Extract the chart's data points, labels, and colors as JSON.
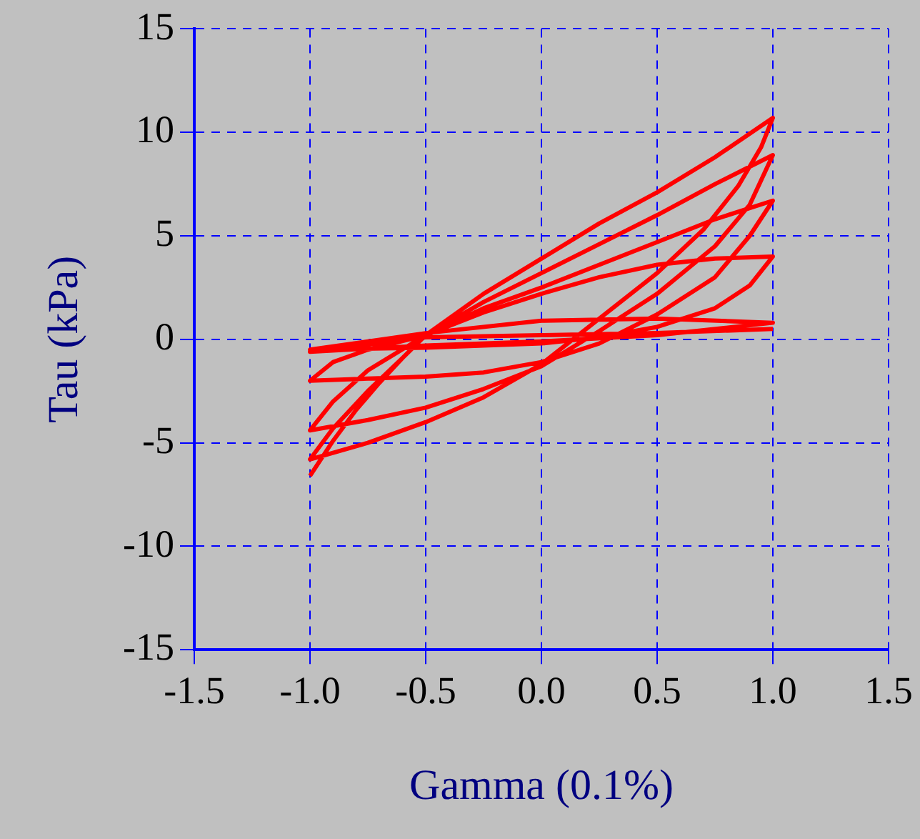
{
  "chart_data": {
    "type": "line",
    "xlabel": "Gamma (0.1%)",
    "ylabel": "Tau (kPa)",
    "xlim": [
      -1.5,
      1.5
    ],
    "ylim": [
      -15,
      15
    ],
    "xticks": [
      {
        "value": -1.5,
        "label": "-1.5"
      },
      {
        "value": -1,
        "label": "-1.0"
      },
      {
        "value": -0.5,
        "label": "-0.5"
      },
      {
        "value": 0,
        "label": "0.0"
      },
      {
        "value": 0.5,
        "label": "0.5"
      },
      {
        "value": 1,
        "label": "1.0"
      },
      {
        "value": 1.5,
        "label": "1.5"
      }
    ],
    "yticks": [
      -15,
      -10,
      -5,
      0,
      5,
      10,
      15
    ],
    "grid": true,
    "legend": false,
    "marker": "none",
    "line_style": "solid",
    "series": [
      {
        "color": "#ff0000",
        "x": [
          -1,
          -0.9,
          -0.8,
          -0.7,
          -0.6,
          -0.5,
          -0.25,
          0,
          0.25,
          0.5,
          0.75,
          1,
          0.95,
          0.85,
          0.7,
          0.5,
          0.25,
          0,
          -0.25,
          -0.5,
          -0.75,
          -1,
          -0.9,
          -0.75,
          -0.6,
          -0.5,
          -0.25,
          0,
          0.25,
          0.5,
          0.75,
          1,
          0.9,
          0.75,
          0.5,
          0.25,
          0,
          -0.25,
          -0.5,
          -0.75,
          -1,
          -0.9,
          -0.75,
          -0.5,
          -0.25,
          0,
          0.25,
          0.5,
          0.75,
          1,
          0.9,
          0.75,
          0.5,
          0.25,
          0,
          -0.25,
          -0.5,
          -0.75,
          -1,
          -0.9,
          -0.75,
          -0.5,
          -0.25,
          0,
          0.25,
          0.5,
          0.75,
          1,
          0.9,
          0.75,
          0.5,
          0.25,
          0,
          -0.5,
          -1,
          -0.5,
          0,
          0.5,
          1,
          0.5,
          0,
          -0.5,
          -1,
          -0.5,
          0,
          0.5,
          1
        ],
        "values": [
          -6.6,
          -4.9,
          -3.4,
          -2.1,
          -0.9,
          0.2,
          2.2,
          3.9,
          5.6,
          7.1,
          8.8,
          10.7,
          9.3,
          7.4,
          5.3,
          3.2,
          1.0,
          -1.2,
          -2.8,
          -4.0,
          -5.0,
          -5.8,
          -4.3,
          -2.5,
          -0.9,
          0.2,
          1.8,
          3.2,
          4.6,
          6.0,
          7.5,
          8.9,
          6.5,
          4.5,
          2.2,
          0.4,
          -1.3,
          -2.4,
          -3.3,
          -3.9,
          -4.4,
          -3.0,
          -1.5,
          0.2,
          1.5,
          2.5,
          3.6,
          4.7,
          5.8,
          6.7,
          5.0,
          3.0,
          1.2,
          -0.2,
          -1.1,
          -1.6,
          -1.8,
          -1.9,
          -2.0,
          -1.1,
          -0.5,
          0.2,
          1.3,
          2.2,
          3.0,
          3.6,
          3.9,
          4.0,
          2.6,
          1.5,
          0.6,
          0.1,
          -0.2,
          -0.4,
          -0.5,
          0.3,
          0.9,
          1.0,
          0.8,
          0.2,
          -0.1,
          -0.3,
          -0.6,
          0.1,
          0.2,
          0.3,
          0.5
        ]
      }
    ]
  }
}
